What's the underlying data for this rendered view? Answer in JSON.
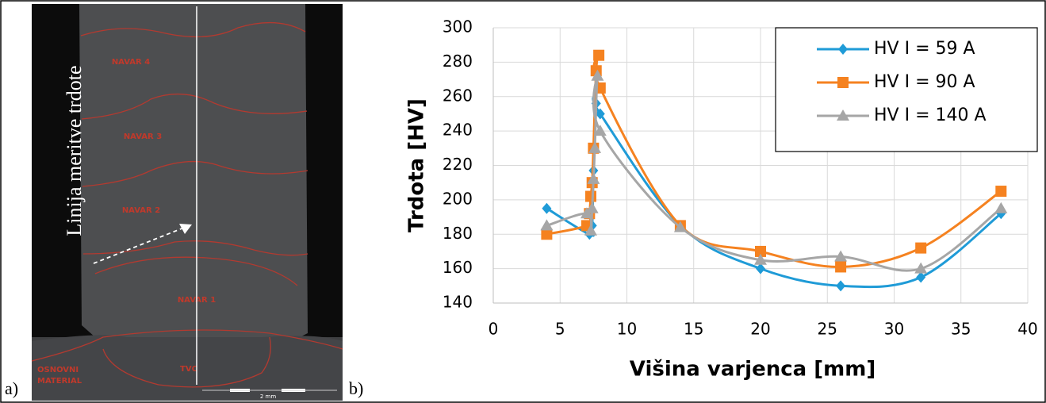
{
  "panels": {
    "a": "a)",
    "b": "b)"
  },
  "photo": {
    "zones": [
      "NAVAR 4",
      "NAVAR 3",
      "NAVAR 2",
      "NAVAR 1",
      "TVC"
    ],
    "base_material": [
      "OSNOVNI",
      "MATERIAL"
    ],
    "line_label": "Linija meritve trdote",
    "scale": "2 mm"
  },
  "chart_data": {
    "type": "line",
    "x_label": "Višina varjenca [mm]",
    "y_label": "Trdota [HV]",
    "xlim": [
      0,
      40
    ],
    "xticks": [
      0,
      5,
      10,
      15,
      20,
      25,
      30,
      35,
      40
    ],
    "ylim": [
      140,
      300
    ],
    "yticks": [
      140,
      160,
      180,
      200,
      220,
      240,
      260,
      280,
      300
    ],
    "grid": true,
    "legend": "upper right",
    "series": [
      {
        "name": "HV I = 59 A",
        "color": "#1f9bd7",
        "marker": "diamond",
        "x": [
          4,
          7.2,
          7.4,
          7.5,
          7.7,
          8,
          14,
          20,
          26,
          32,
          38
        ],
        "values": [
          195,
          180,
          185,
          217,
          256,
          250,
          185,
          160,
          150,
          155,
          192
        ]
      },
      {
        "name": "HV I = 90 A",
        "color": "#f58220",
        "marker": "square",
        "x": [
          4,
          7,
          7.2,
          7.3,
          7.4,
          7.5,
          7.7,
          7.9,
          8,
          14,
          20,
          26,
          32,
          38
        ],
        "values": [
          180,
          185,
          192,
          202,
          210,
          230,
          275,
          284,
          265,
          185,
          170,
          161,
          172,
          205
        ]
      },
      {
        "name": "HV I = 140 A",
        "color": "#a6a6a6",
        "marker": "triangle",
        "x": [
          4,
          7,
          7.3,
          7.4,
          7.5,
          7.6,
          7.8,
          8,
          14,
          20,
          26,
          32,
          38
        ],
        "values": [
          185,
          192,
          182,
          195,
          212,
          230,
          272,
          240,
          184,
          165,
          167,
          160,
          195
        ]
      }
    ]
  }
}
